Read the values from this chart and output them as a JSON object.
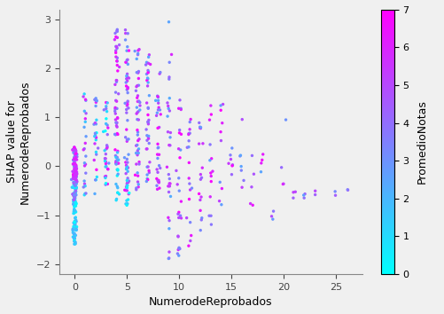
{
  "title": "",
  "xlabel": "NumerodeReprobados",
  "ylabel": "SHAP value for\nNumerodeReprobados",
  "colorbar_label": "PromedioNotas",
  "xlim": [
    -1.5,
    27.5
  ],
  "ylim": [
    -2.2,
    3.2
  ],
  "xticks": [
    0,
    5,
    10,
    15,
    20,
    25
  ],
  "yticks": [
    -2,
    -1,
    0,
    1,
    2,
    3
  ],
  "colorbar_ticks": [
    0,
    1,
    2,
    3,
    4,
    5,
    6,
    7
  ],
  "cmap": "cool",
  "vmin": 0,
  "vmax": 7,
  "alpha": 1.0,
  "marker_size": 6,
  "background_color": "#f0f0f0",
  "figsize": [
    5.01,
    3.54
  ],
  "dpi": 100,
  "seed": 42
}
